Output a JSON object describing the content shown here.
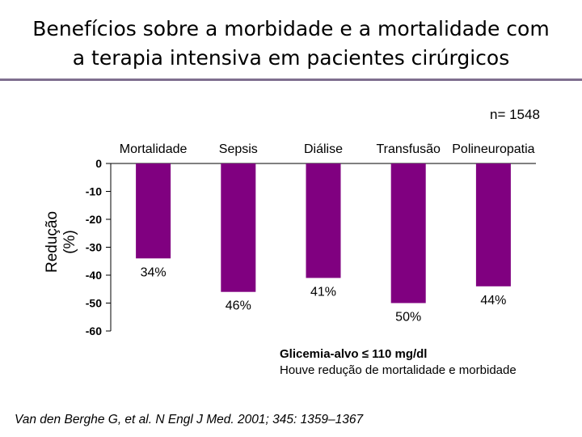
{
  "title": {
    "line1": "Benefícios sobre a morbidade e a mortalidade com",
    "line2": "a terapia intensiva em pacientes cirúrgicos"
  },
  "n_label": "n= 1548",
  "footer": {
    "line1": "Glicemia-alvo ≤ 110 mg/dl",
    "line2": "Houve redução de mortalidade e morbidade"
  },
  "citation": "Van den Berghe G, et al. N Engl J Med. 2001; 345: 1359–1367",
  "colors": {
    "bar": "#800080",
    "title_rule": "#7f6f8f"
  },
  "chart_data": {
    "type": "bar",
    "categories": [
      "Mortalidade",
      "Sepsis",
      "Diálise",
      "Transfusão",
      "Polineuropatia"
    ],
    "values": [
      -34,
      -46,
      -41,
      -50,
      -44
    ],
    "data_labels": [
      "34%",
      "46%",
      "41%",
      "50%",
      "44%"
    ],
    "ylabel_line1": "Redução",
    "ylabel_line2": "(%)",
    "ylim": [
      -60,
      0
    ],
    "yticks": [
      0,
      -10,
      -20,
      -30,
      -40,
      -50,
      -60
    ],
    "category_axis_position": "top",
    "grid": false
  }
}
